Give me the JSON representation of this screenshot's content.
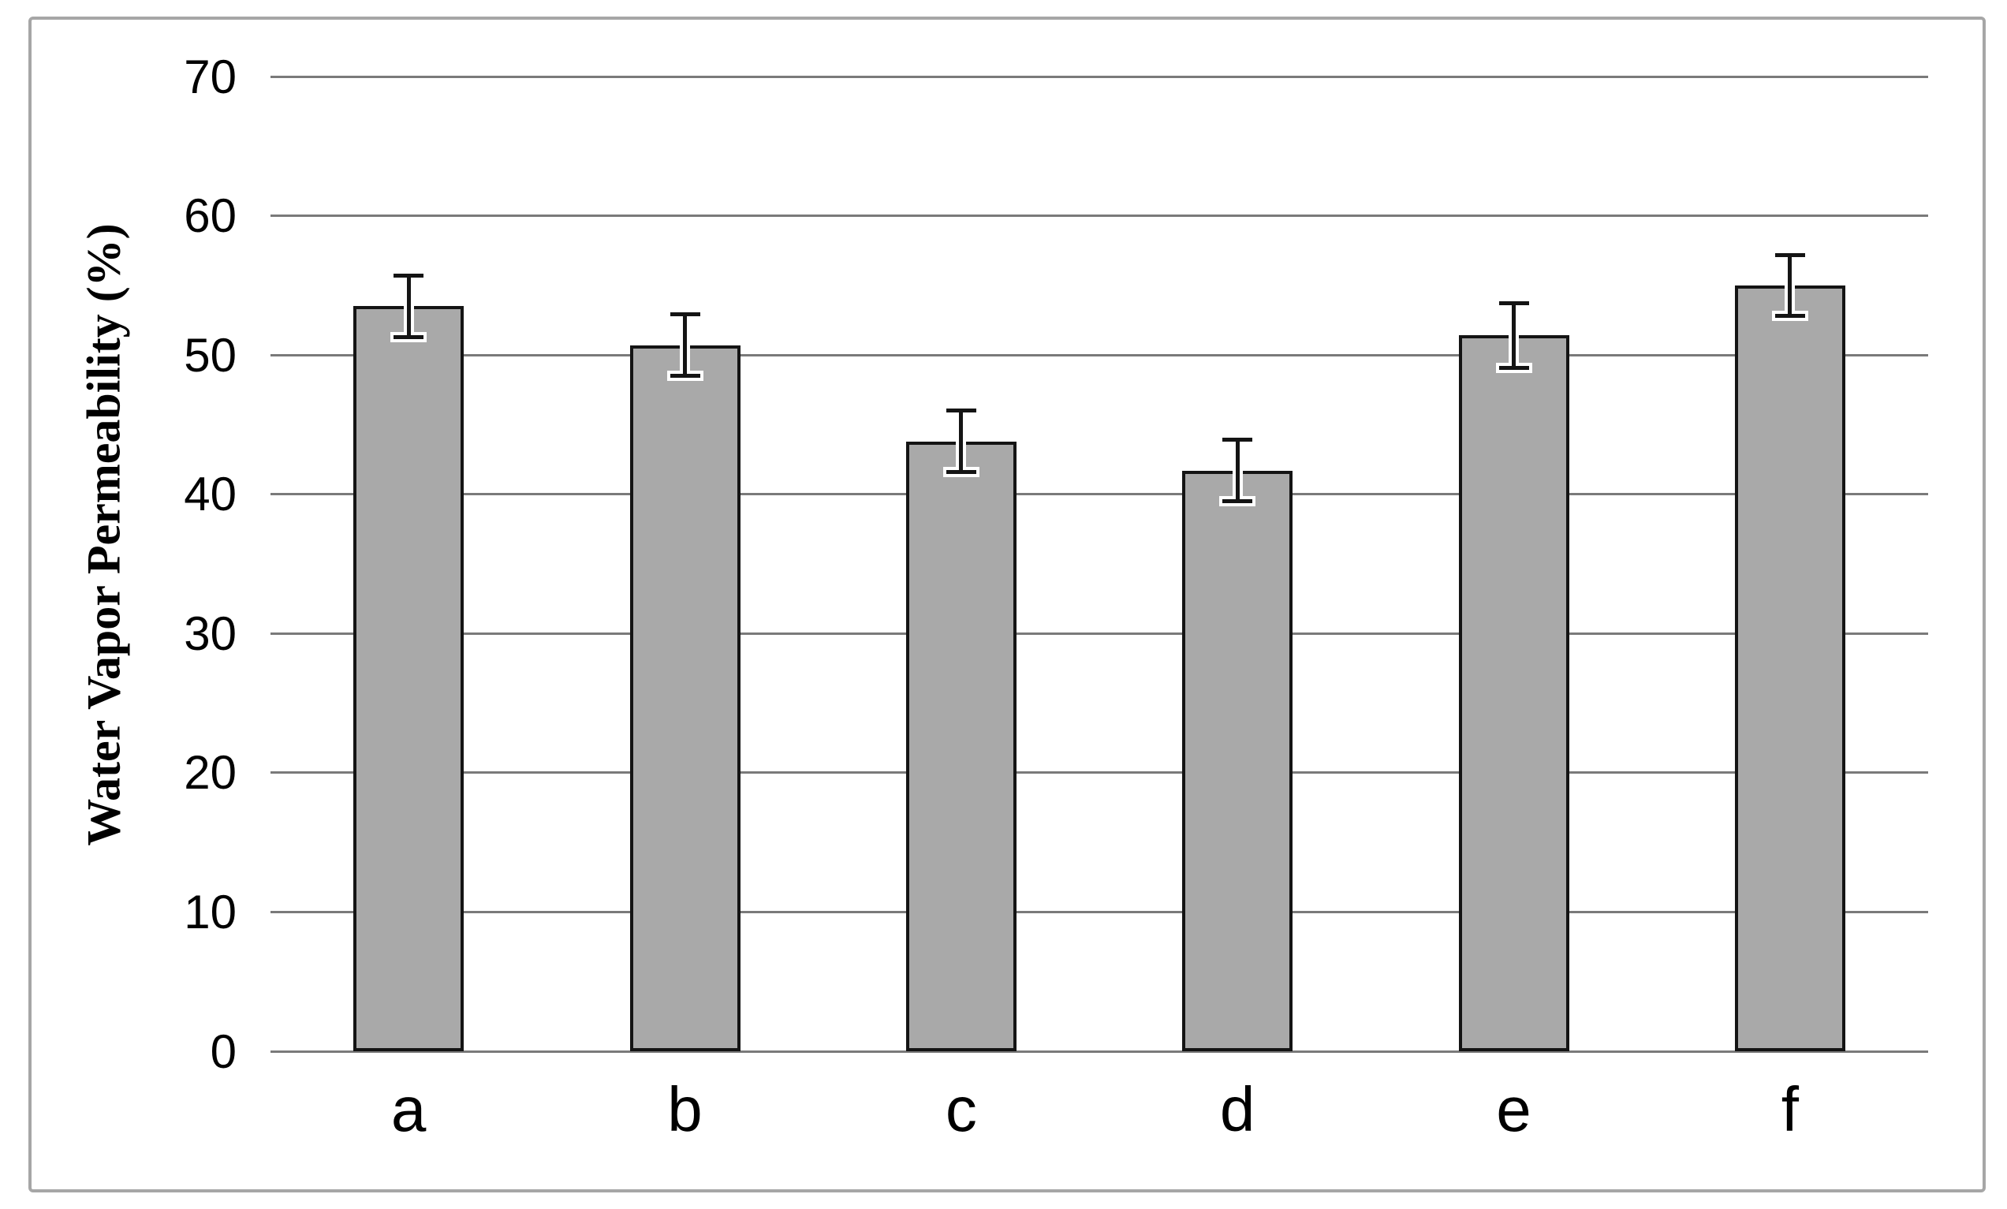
{
  "figure": {
    "background": "#ffffff",
    "border_color": "#a6a6a6"
  },
  "chart_data": {
    "type": "bar",
    "title": "",
    "xlabel": "",
    "ylabel": "Water Vapor Permeability (%)",
    "categories": [
      "a",
      "b",
      "c",
      "d",
      "e",
      "f"
    ],
    "values": [
      53.5,
      50.7,
      43.8,
      41.7,
      51.4,
      55.0
    ],
    "error_bars": [
      2.2,
      2.2,
      2.2,
      2.2,
      2.3,
      2.2
    ],
    "ylim": [
      0,
      70
    ],
    "yticks": [
      0,
      10,
      20,
      30,
      40,
      50,
      60,
      70
    ],
    "grid": true,
    "legend_position": "none",
    "bar_fill_color": "#a9a9a9",
    "bar_border_color": "#141414",
    "gridline_color": "#7a7a7a",
    "error_bar_color": "#141414",
    "text_color": "#000000"
  }
}
